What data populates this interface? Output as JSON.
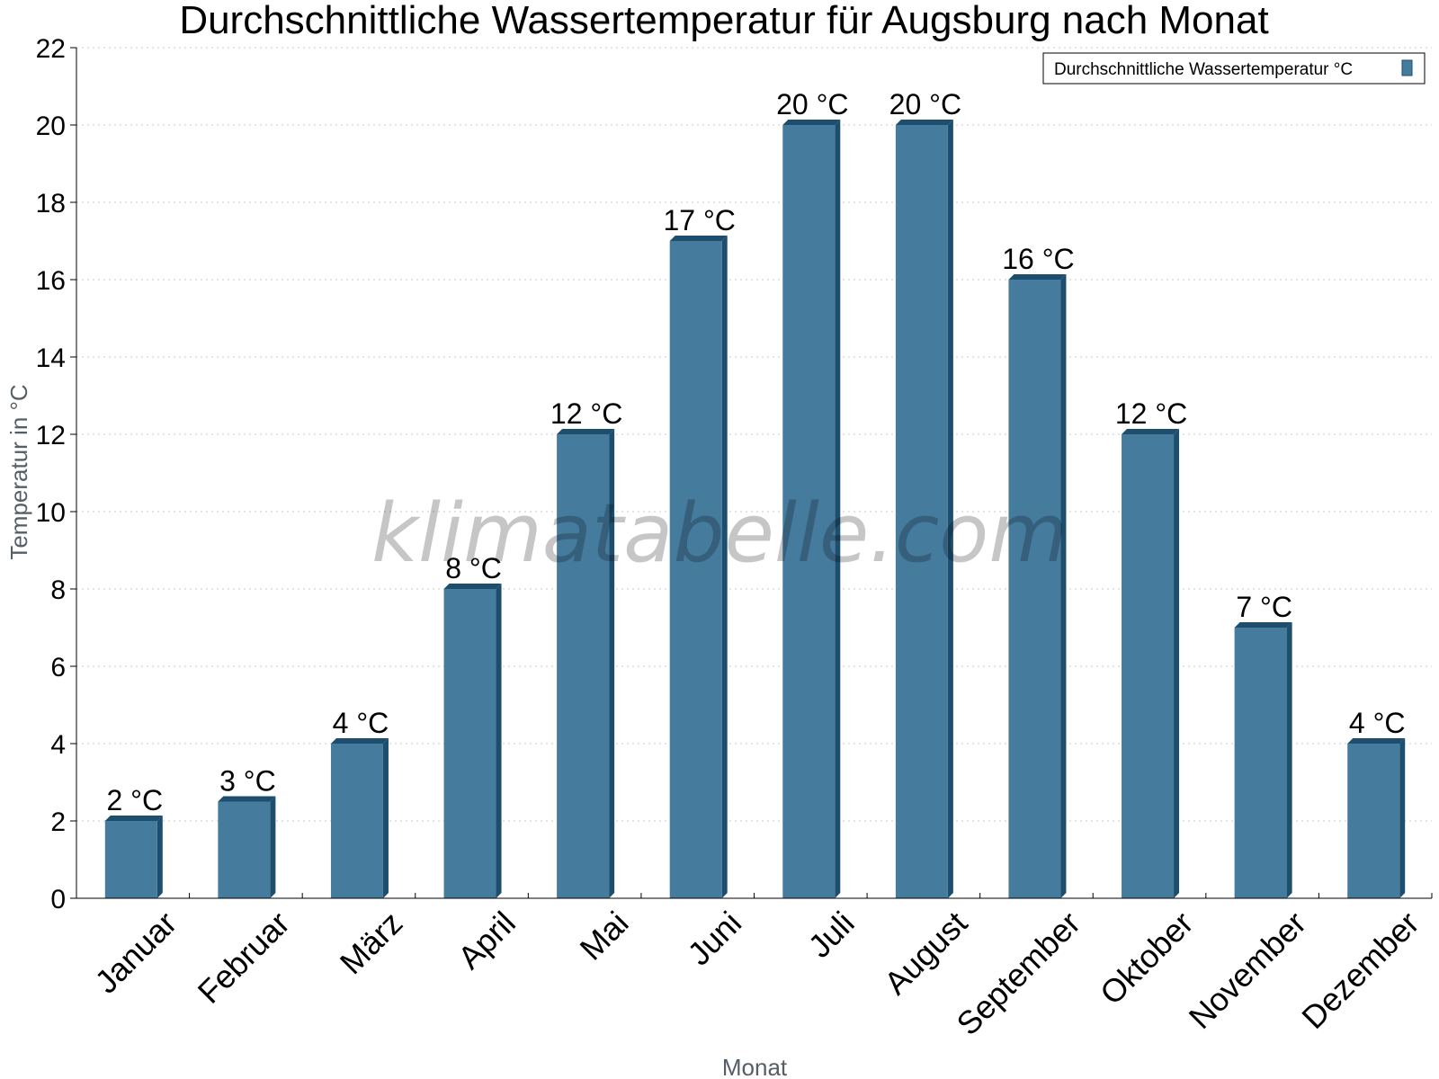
{
  "chart_data": {
    "type": "bar",
    "title": "Durchschnittliche Wassertemperatur für Augsburg nach Monat",
    "xlabel": "Monat",
    "ylabel": "Temperatur in °C",
    "categories": [
      "Januar",
      "Februar",
      "März",
      "April",
      "Mai",
      "Juni",
      "Juli",
      "August",
      "September",
      "Oktober",
      "November",
      "Dezember"
    ],
    "series": [
      {
        "name": "Durchschnittliche Wassertemperatur °C",
        "values": [
          2,
          2.5,
          4,
          8,
          12,
          17,
          20,
          20,
          16,
          12,
          7,
          4
        ],
        "labels": [
          "2 °C",
          "3 °C",
          "4 °C",
          "8 °C",
          "12 °C",
          "17 °C",
          "20 °C",
          "20 °C",
          "16 °C",
          "12 °C",
          "7 °C",
          "4 °C"
        ]
      }
    ],
    "ylim": [
      0,
      22
    ],
    "yticks": [
      0,
      2,
      4,
      6,
      8,
      10,
      12,
      14,
      16,
      18,
      20,
      22
    ],
    "grid": true,
    "legend_position": "top-right",
    "colors": {
      "bar": "#457b9d",
      "bar_side": "#1d4e6e",
      "grid": "#c8c8c8"
    }
  },
  "watermark": "klimatabelle.com"
}
